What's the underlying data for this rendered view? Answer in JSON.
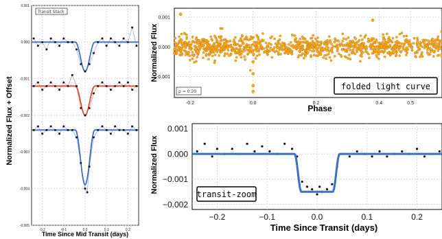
{
  "colors": {
    "blue": "#3b6fc6",
    "red": "#e24a33",
    "orange": "#f5a623",
    "grid": "#c8c8c8",
    "dot": "#111111"
  },
  "chart_data": [
    {
      "type": "line",
      "legend": "Transit Stack",
      "xlabel": "Time Since Mid Transit (days)",
      "ylabel": "Normalized Flux + Offset",
      "xlim": [
        -0.25,
        0.25
      ],
      "ylim": [
        -0.005,
        0.001
      ],
      "xticks": [
        -0.2,
        -0.1,
        0.0,
        0.1,
        0.2
      ],
      "xtick_labels": [
        "-0.2",
        "-0.1",
        "0.0",
        "0.1",
        "0.2"
      ],
      "yticks": [
        0.001,
        0.0,
        -0.001,
        -0.002,
        -0.003,
        -0.004,
        -0.005
      ],
      "ytick_labels": [
        "0.001",
        "0.000",
        "-0.001",
        "-0.002",
        "-0.003",
        "-0.004",
        "-0.005"
      ],
      "grid": true,
      "series": [
        {
          "color": "#3b6fc6",
          "offset": 0.0,
          "depth": 0.0008,
          "points": [
            [
              -0.24,
              0.0001
            ],
            [
              -0.22,
              -0.0001
            ],
            [
              -0.2,
              0.0
            ],
            [
              -0.18,
              -0.0002
            ],
            [
              -0.16,
              0.0001
            ],
            [
              -0.14,
              0.0
            ],
            [
              -0.12,
              -0.0001
            ],
            [
              -0.1,
              0.0001
            ],
            [
              -0.08,
              0.0
            ],
            [
              -0.06,
              0.0
            ],
            [
              -0.04,
              -0.0002
            ],
            [
              -0.02,
              -0.0006
            ],
            [
              0.0,
              -0.0008
            ],
            [
              0.02,
              -0.0006
            ],
            [
              0.04,
              -0.0003
            ],
            [
              0.06,
              0.0
            ],
            [
              0.08,
              0.0001
            ],
            [
              0.1,
              -0.0001
            ],
            [
              0.12,
              0.0001
            ],
            [
              0.14,
              0.0
            ],
            [
              0.16,
              -0.0001
            ],
            [
              0.18,
              0.0001
            ],
            [
              0.2,
              0.0
            ],
            [
              0.22,
              0.0004
            ],
            [
              0.24,
              -0.0001
            ]
          ]
        },
        {
          "color": "#e24a33",
          "offset": -0.0012,
          "depth": 0.0008,
          "points": [
            [
              -0.24,
              -0.0012
            ],
            [
              -0.22,
              -0.0011
            ],
            [
              -0.2,
              -0.0013
            ],
            [
              -0.18,
              -0.0012
            ],
            [
              -0.16,
              -0.0011
            ],
            [
              -0.14,
              -0.0012
            ],
            [
              -0.12,
              -0.0013
            ],
            [
              -0.1,
              -0.0011
            ],
            [
              -0.08,
              -0.0012
            ],
            [
              -0.06,
              -0.0009
            ],
            [
              -0.04,
              -0.0012
            ],
            [
              -0.02,
              -0.0018
            ],
            [
              0.0,
              -0.002
            ],
            [
              0.02,
              -0.0018
            ],
            [
              0.04,
              -0.0014
            ],
            [
              0.06,
              -0.0012
            ],
            [
              0.08,
              -0.0011
            ],
            [
              0.1,
              -0.0012
            ],
            [
              0.12,
              -0.0013
            ],
            [
              0.14,
              -0.0012
            ],
            [
              0.16,
              -0.0011
            ],
            [
              0.18,
              -0.0012
            ],
            [
              0.2,
              -0.0011
            ],
            [
              0.22,
              -0.0013
            ],
            [
              0.24,
              -0.0012
            ]
          ]
        },
        {
          "color": "#3b6fc6",
          "offset": -0.0024,
          "depth": 0.0015,
          "points": [
            [
              -0.24,
              -0.0024
            ],
            [
              -0.22,
              -0.0023
            ],
            [
              -0.2,
              -0.0025
            ],
            [
              -0.18,
              -0.0024
            ],
            [
              -0.16,
              -0.0023
            ],
            [
              -0.14,
              -0.0024
            ],
            [
              -0.12,
              -0.0025
            ],
            [
              -0.1,
              -0.0023
            ],
            [
              -0.08,
              -0.0024
            ],
            [
              -0.06,
              -0.0024
            ],
            [
              -0.04,
              -0.0026
            ],
            [
              -0.02,
              -0.0033
            ],
            [
              0.0,
              -0.004
            ],
            [
              0.01,
              -0.0041
            ],
            [
              0.02,
              -0.0034
            ],
            [
              0.04,
              -0.0026
            ],
            [
              0.06,
              -0.0024
            ],
            [
              0.08,
              -0.0023
            ],
            [
              0.1,
              -0.0024
            ],
            [
              0.12,
              -0.0025
            ],
            [
              0.14,
              -0.0023
            ],
            [
              0.16,
              -0.0024
            ],
            [
              0.18,
              -0.0024
            ],
            [
              0.2,
              -0.0025
            ],
            [
              0.22,
              -0.0023
            ],
            [
              0.24,
              -0.0024
            ]
          ]
        }
      ]
    },
    {
      "type": "scatter",
      "annotation": "folded light curve",
      "corner_label": "p = 0.20",
      "xlabel": "Phase",
      "ylabel": "Normalized Flux",
      "xlim": [
        -0.25,
        0.6
      ],
      "ylim": [
        -0.0017,
        0.0013
      ],
      "xticks": [
        -0.2,
        0.0,
        0.2,
        0.4,
        0.5
      ],
      "xtick_labels": [
        "-0.2",
        "0.0",
        "0.2",
        "0.4",
        "0.5"
      ],
      "yticks": [
        0.001,
        0.0,
        -0.001
      ],
      "ytick_labels": [
        "0.001",
        "0.000",
        "-0.001"
      ],
      "grid": true,
      "noise_sigma": 0.00018,
      "outliers": [
        [
          0.0,
          -0.0013
        ],
        [
          0.0,
          -0.0015
        ],
        [
          0.0,
          -0.0009
        ],
        [
          0.0,
          -0.0005
        ],
        [
          -0.23,
          0.0011
        ],
        [
          0.38,
          0.0009
        ]
      ]
    },
    {
      "type": "line",
      "annotation": "transit-zoom",
      "xlabel": "Time Since Transit (days)",
      "ylabel": "Normalized Flux",
      "xlim": [
        -0.25,
        0.25
      ],
      "ylim": [
        -0.0022,
        0.0012
      ],
      "xticks": [
        -0.2,
        -0.1,
        0.0,
        0.1,
        0.2
      ],
      "xtick_labels": [
        "−0.2",
        "−0.1",
        "0.0",
        "0.1",
        "0.2"
      ],
      "yticks": [
        0.001,
        0.0,
        -0.001,
        -0.002
      ],
      "ytick_labels": [
        "0.001",
        "0.000",
        "−0.001",
        "−0.002"
      ],
      "grid": true,
      "model": {
        "depth": 0.0015,
        "half_width": 0.045
      },
      "points": [
        [
          -0.24,
          0.0001
        ],
        [
          -0.225,
          0.0004
        ],
        [
          -0.21,
          -0.0001
        ],
        [
          -0.2,
          0.0002
        ],
        [
          -0.185,
          0.0
        ],
        [
          -0.17,
          0.0002
        ],
        [
          -0.155,
          0.0
        ],
        [
          -0.14,
          0.0004
        ],
        [
          -0.125,
          0.0001
        ],
        [
          -0.11,
          0.0003
        ],
        [
          -0.095,
          0.0001
        ],
        [
          -0.08,
          0.0
        ],
        [
          -0.065,
          0.0004
        ],
        [
          -0.05,
          0.0002
        ],
        [
          -0.04,
          -0.0001
        ],
        [
          -0.03,
          -0.0011
        ],
        [
          -0.02,
          -0.0013
        ],
        [
          -0.01,
          -0.0014
        ],
        [
          0.0,
          -0.0016
        ],
        [
          0.005,
          -0.0013
        ],
        [
          0.01,
          -0.0015
        ],
        [
          0.02,
          -0.0014
        ],
        [
          0.03,
          -0.0012
        ],
        [
          0.04,
          -0.0005
        ],
        [
          0.05,
          0.0
        ],
        [
          0.065,
          -0.0001
        ],
        [
          0.08,
          0.0001
        ],
        [
          0.095,
          0.0
        ],
        [
          0.11,
          -0.0001
        ],
        [
          0.125,
          0.0001
        ],
        [
          0.14,
          -0.0001
        ],
        [
          0.155,
          0.0
        ],
        [
          0.17,
          0.0001
        ],
        [
          0.185,
          0.0
        ],
        [
          0.2,
          0.0002
        ],
        [
          0.215,
          -0.0001
        ],
        [
          0.23,
          0.0
        ],
        [
          0.245,
          0.0001
        ]
      ]
    }
  ]
}
